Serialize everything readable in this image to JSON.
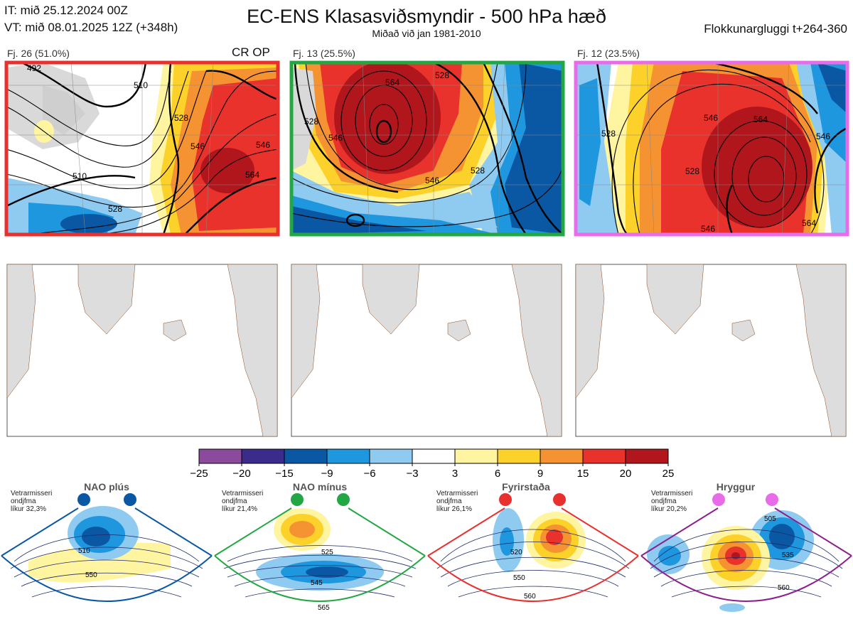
{
  "header": {
    "it_line": "IT: mið 25.12.2024 00Z",
    "vt_line": "VT: mið 08.01.2025 12Z  (+348h)",
    "title": "EC-ENS Klasasviðsmyndir - 500 hPa hæð",
    "subtitle": "Miðað við jan 1981-2010",
    "window": "Flokkunargluggi t+264-360"
  },
  "clusters": [
    {
      "label": "Fj. 26 (51.0%)",
      "tag": "CR OP",
      "border": "#e8312e",
      "contour_labels": [
        "492",
        "510",
        "510",
        "528",
        "528",
        "546",
        "546",
        "564"
      ]
    },
    {
      "label": "Fj. 13 (25.5%)",
      "tag": "",
      "border": "#22a744",
      "contour_labels": [
        "528",
        "546",
        "546",
        "528",
        "564",
        "528"
      ]
    },
    {
      "label": "Fj. 12 (23.5%)",
      "tag": "",
      "border": "#e86ce8",
      "contour_labels": [
        "528",
        "528",
        "546",
        "564",
        "546",
        "546",
        "564"
      ]
    }
  ],
  "colorbar": {
    "ticks": [
      "−25",
      "−20",
      "−15",
      "−9",
      "−6",
      "−3",
      "3",
      "6",
      "9",
      "15",
      "20",
      "25"
    ],
    "colors": [
      "#8c4a9c",
      "#3b2c8c",
      "#0a57a4",
      "#1e97de",
      "#8fcbf0",
      "#ffffff",
      "#fff4a0",
      "#fcd12a",
      "#f59231",
      "#e8322b",
      "#b0161c"
    ]
  },
  "regimes": [
    {
      "title": "NAO plús",
      "note": [
        "Vetrarmisseri",
        "ondjfma",
        "líkur 32,3%"
      ],
      "color": "#0a57a4",
      "labels": [
        "510",
        "550"
      ]
    },
    {
      "title": "NAO mínus",
      "note": [
        "Vetrarmisseri",
        "ondjfma",
        "líkur 21,4%"
      ],
      "color": "#22a744",
      "labels": [
        "525",
        "545",
        "565"
      ]
    },
    {
      "title": "Fyrirstaða",
      "note": [
        "Vetrarmisseri",
        "ondjfma",
        "líkur 26,1%"
      ],
      "color": "#e8312e",
      "labels": [
        "520",
        "550",
        "560"
      ]
    },
    {
      "title": "Hryggur",
      "note": [
        "Vetrarmisseri",
        "ondjfma",
        "líkur 20,2%"
      ],
      "color": "#e86ce8",
      "labels": [
        "505",
        "535",
        "560"
      ]
    }
  ]
}
